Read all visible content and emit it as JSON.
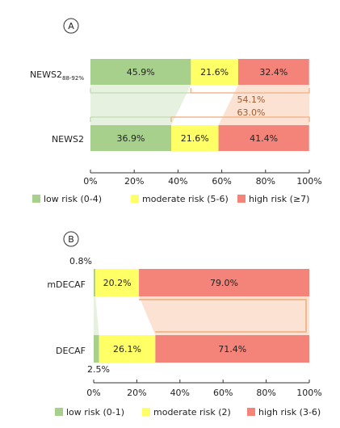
{
  "colors": {
    "low": "#a8d08d",
    "moderate": "#ffff66",
    "high": "#f4837a",
    "low_band": "#e7f1df",
    "high_band": "#fbe2d3",
    "bracket_low": "#c6dfb5",
    "bracket_high": "#f2b890",
    "bracket_text": "#a05a2c",
    "text": "#222222",
    "axis": "#333333"
  },
  "chart_data": [
    {
      "type": "bar",
      "orientation": "horizontal",
      "stacked": true,
      "panel_label": "A",
      "categories": [
        "NEWS2",
        "NEWS2"
      ],
      "category_subscripts": [
        "88-92%",
        ""
      ],
      "series": [
        {
          "name": "low risk (0-4)",
          "values": [
            45.9,
            36.9
          ]
        },
        {
          "name": "moderate risk (5-6)",
          "values": [
            21.6,
            21.6
          ]
        },
        {
          "name": "high risk (≥7)",
          "values": [
            32.4,
            41.4
          ]
        }
      ],
      "value_labels": [
        [
          "45.9%",
          "21.6%",
          "32.4%"
        ],
        [
          "36.9%",
          "21.6%",
          "41.4%"
        ]
      ],
      "annotations": [
        "54.1%",
        "63.0%"
      ],
      "xlim": [
        0,
        100
      ],
      "xticks": [
        "0%",
        "20%",
        "40%",
        "60%",
        "80%",
        "100%"
      ],
      "legend_position": "bottom"
    },
    {
      "type": "bar",
      "orientation": "horizontal",
      "stacked": true,
      "panel_label": "B",
      "categories": [
        "mDECAF",
        "DECAF"
      ],
      "category_subscripts": [
        "",
        ""
      ],
      "series": [
        {
          "name": "low risk (0-1)",
          "values": [
            0.8,
            2.5
          ]
        },
        {
          "name": "moderate risk (2)",
          "values": [
            20.2,
            26.1
          ]
        },
        {
          "name": "high risk (3-6)",
          "values": [
            79.0,
            71.4
          ]
        }
      ],
      "value_labels": [
        [
          "0.8%",
          "20.2%",
          "79.0%"
        ],
        [
          "2.5%",
          "26.1%",
          "71.4%"
        ]
      ],
      "xlim": [
        0,
        100
      ],
      "xticks": [
        "0%",
        "20%",
        "40%",
        "60%",
        "80%",
        "100%"
      ],
      "legend_position": "bottom"
    }
  ]
}
